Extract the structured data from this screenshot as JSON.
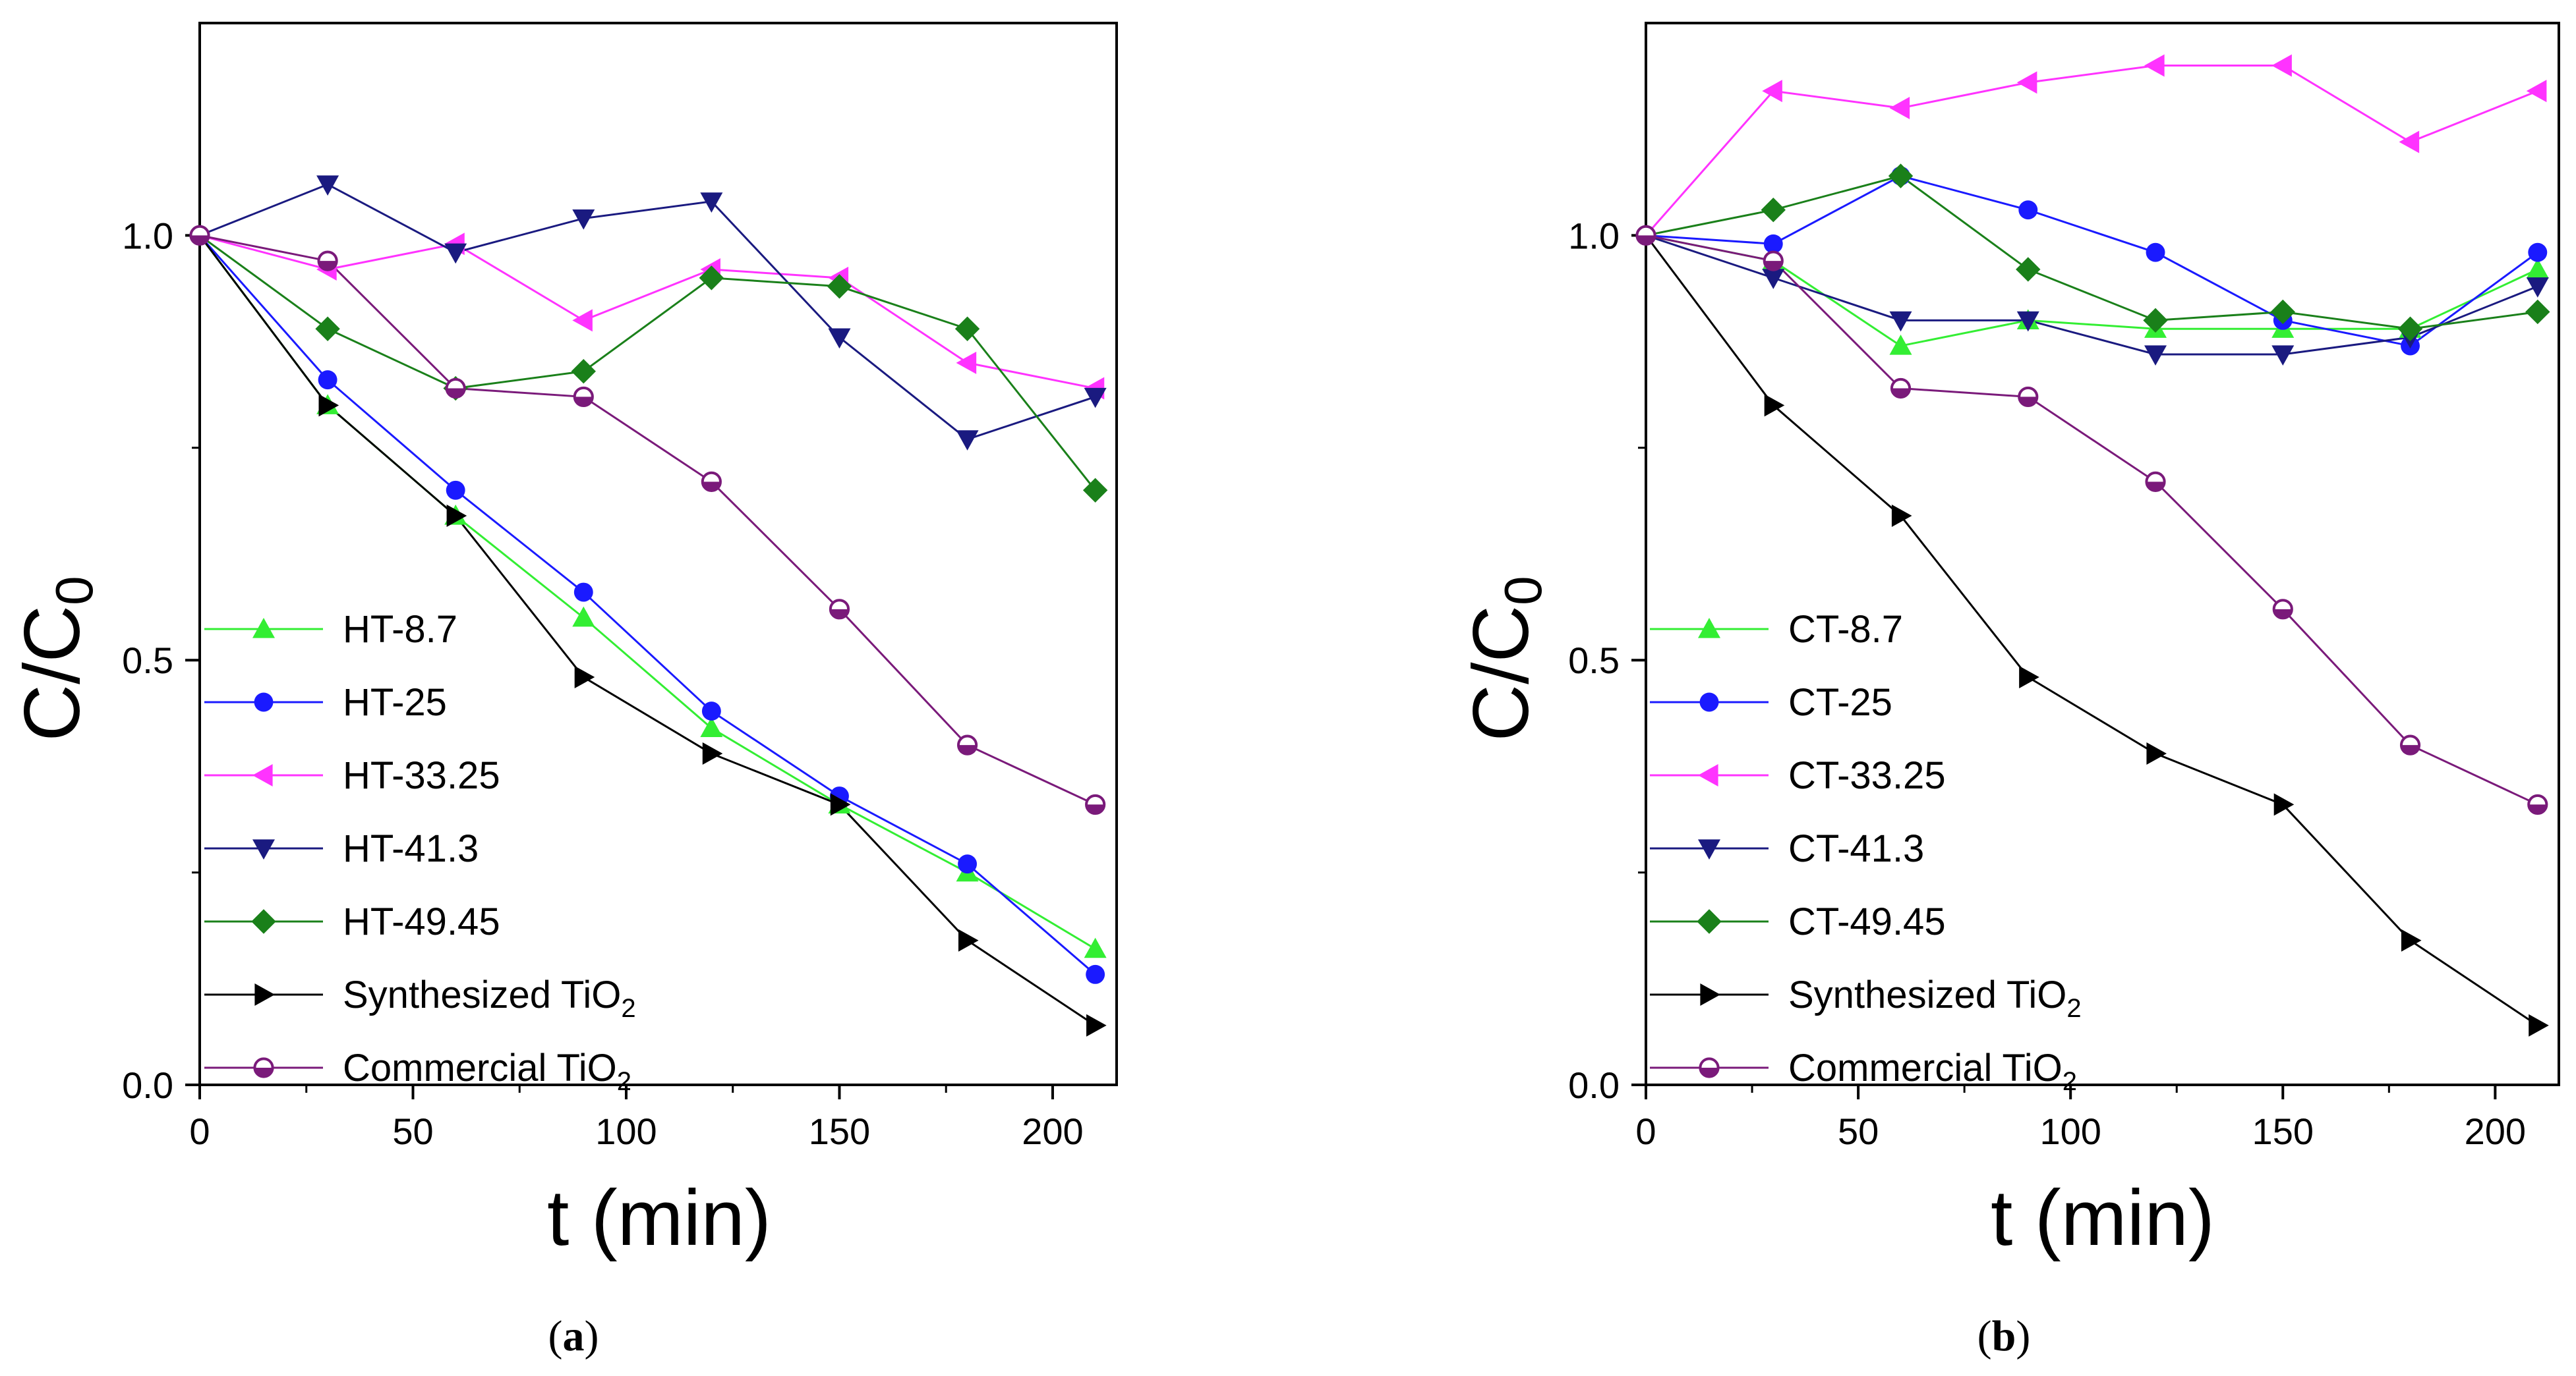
{
  "colors": {
    "HT-8.7": "#33ee33",
    "HT-25": "#1a1aff",
    "HT-33.25": "#ff33ff",
    "HT-41.3": "#1a1a80",
    "HT-49.45": "#1a801a",
    "Synthesized": "#000000",
    "Commercial": "#7a1a7a",
    "CT-8.7": "#33ee33",
    "CT-25": "#1a1aff",
    "CT-33.25": "#ff33ff",
    "CT-41.3": "#1a1a80",
    "CT-49.45": "#1a801a"
  },
  "chart_data": [
    {
      "type": "line",
      "panel_label": "a",
      "xlabel": "t (min)",
      "ylabel": "C/C",
      "ylabel_sub": "0",
      "xlim": [
        0,
        215
      ],
      "ylim": [
        0,
        1.25
      ],
      "xticks": [
        0,
        50,
        100,
        150,
        200
      ],
      "xtick_labels": [
        "0",
        "50",
        "100",
        "150",
        "200"
      ],
      "yticks": [
        0.0,
        0.5,
        1.0
      ],
      "ytick_labels": [
        "0.0",
        "0.5",
        "1.0"
      ],
      "series": [
        {
          "name": "HT-8.7",
          "label": "HT-8.7",
          "marker": "triangle-up",
          "x": [
            0,
            30,
            60,
            90,
            120,
            150,
            180,
            210
          ],
          "values": [
            1.0,
            0.8,
            0.67,
            0.55,
            0.42,
            0.33,
            0.25,
            0.16
          ]
        },
        {
          "name": "HT-25",
          "label": "HT-25",
          "marker": "circle",
          "x": [
            0,
            30,
            60,
            90,
            120,
            150,
            180,
            210
          ],
          "values": [
            1.0,
            0.83,
            0.7,
            0.58,
            0.44,
            0.34,
            0.26,
            0.13
          ]
        },
        {
          "name": "HT-33.25",
          "label": "HT-33.25",
          "marker": "triangle-left",
          "x": [
            0,
            30,
            60,
            90,
            120,
            150,
            180,
            210
          ],
          "values": [
            1.0,
            0.96,
            0.99,
            0.9,
            0.96,
            0.95,
            0.85,
            0.82
          ]
        },
        {
          "name": "HT-41.3",
          "label": "HT-41.3",
          "marker": "triangle-down",
          "x": [
            0,
            30,
            60,
            90,
            120,
            150,
            180,
            210
          ],
          "values": [
            1.0,
            1.06,
            0.98,
            1.02,
            1.04,
            0.88,
            0.76,
            0.81
          ]
        },
        {
          "name": "HT-49.45",
          "label": "HT-49.45",
          "marker": "diamond",
          "x": [
            0,
            30,
            60,
            90,
            120,
            150,
            180,
            210
          ],
          "values": [
            1.0,
            0.89,
            0.82,
            0.84,
            0.95,
            0.94,
            0.89,
            0.7
          ]
        },
        {
          "name": "Synthesized",
          "label": "Synthesized TiO",
          "label_sub": "2",
          "marker": "triangle-right",
          "line_color": "Synthesized-line-a",
          "x": [
            0,
            30,
            60,
            90,
            120,
            150,
            180,
            210
          ],
          "values": [
            1.0,
            0.8,
            0.67,
            0.48,
            0.39,
            0.33,
            0.17,
            0.07
          ]
        },
        {
          "name": "Commercial",
          "label": "Commercial TiO",
          "label_sub": "2",
          "marker": "half-circle",
          "x": [
            0,
            30,
            60,
            90,
            120,
            150,
            180,
            210
          ],
          "values": [
            1.0,
            0.97,
            0.82,
            0.81,
            0.71,
            0.56,
            0.4,
            0.33
          ]
        }
      ]
    },
    {
      "type": "line",
      "panel_label": "b",
      "xlabel": "t (min)",
      "ylabel": "C/C",
      "ylabel_sub": "0",
      "xlim": [
        0,
        215
      ],
      "ylim": [
        0,
        1.25
      ],
      "xticks": [
        0,
        50,
        100,
        150,
        200
      ],
      "xtick_labels": [
        "0",
        "50",
        "100",
        "150",
        "200"
      ],
      "yticks": [
        0.0,
        0.5,
        1.0
      ],
      "ytick_labels": [
        "0.0",
        "0.5",
        "1.0"
      ],
      "series": [
        {
          "name": "CT-8.7",
          "label": "CT-8.7",
          "marker": "triangle-up",
          "x": [
            0,
            30,
            60,
            90,
            120,
            150,
            180,
            210
          ],
          "values": [
            1.0,
            0.97,
            0.87,
            0.9,
            0.89,
            0.89,
            0.89,
            0.96
          ]
        },
        {
          "name": "CT-25",
          "label": "CT-25",
          "marker": "circle",
          "x": [
            0,
            30,
            60,
            90,
            120,
            150,
            180,
            210
          ],
          "values": [
            1.0,
            0.99,
            1.07,
            1.03,
            0.98,
            0.9,
            0.87,
            0.98
          ]
        },
        {
          "name": "CT-33.25",
          "label": "CT-33.25",
          "marker": "triangle-left",
          "x": [
            0,
            30,
            60,
            90,
            120,
            150,
            180,
            210
          ],
          "values": [
            1.0,
            1.17,
            1.15,
            1.18,
            1.2,
            1.2,
            1.11,
            1.17
          ]
        },
        {
          "name": "CT-41.3",
          "label": "CT-41.3",
          "marker": "triangle-down",
          "x": [
            0,
            30,
            60,
            90,
            120,
            150,
            180,
            210
          ],
          "values": [
            1.0,
            0.95,
            0.9,
            0.9,
            0.86,
            0.86,
            0.88,
            0.94
          ]
        },
        {
          "name": "CT-49.45",
          "label": "CT-49.45",
          "marker": "diamond",
          "x": [
            0,
            30,
            60,
            90,
            120,
            150,
            180,
            210
          ],
          "values": [
            1.0,
            1.03,
            1.07,
            0.96,
            0.9,
            0.91,
            0.89,
            0.91
          ]
        },
        {
          "name": "Synthesized",
          "label": "Synthesized TiO",
          "label_sub": "2",
          "marker": "triangle-right",
          "x": [
            0,
            30,
            60,
            90,
            120,
            150,
            180,
            210
          ],
          "values": [
            1.0,
            0.8,
            0.67,
            0.48,
            0.39,
            0.33,
            0.17,
            0.07
          ]
        },
        {
          "name": "Commercial",
          "label": "Commercial TiO",
          "label_sub": "2",
          "marker": "half-circle",
          "x": [
            0,
            30,
            60,
            90,
            120,
            150,
            180,
            210
          ],
          "values": [
            1.0,
            0.97,
            0.82,
            0.81,
            0.71,
            0.56,
            0.4,
            0.33
          ]
        }
      ]
    }
  ]
}
